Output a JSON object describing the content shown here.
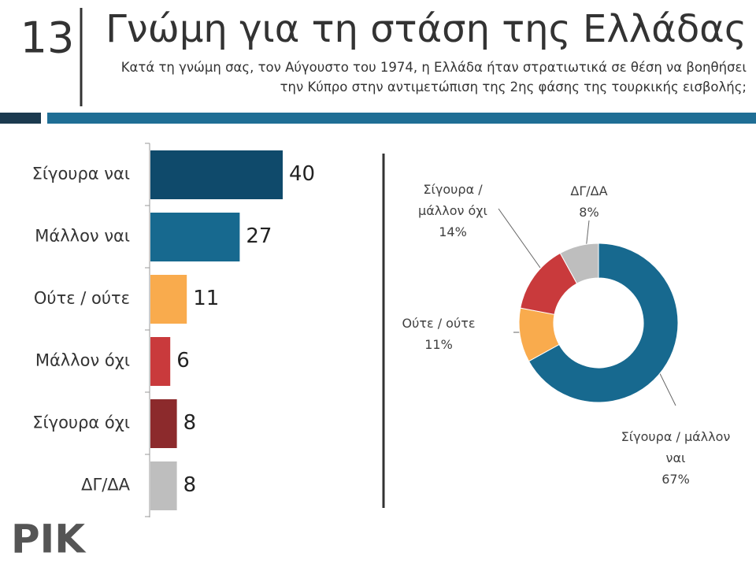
{
  "slide_number": "13",
  "title": "Γνώμη για τη στάση της Ελλάδας",
  "subtitle": "Κατά τη γνώμη σας, τον Αύγουστο του 1974, η Ελλάδα ήταν στρατιωτικά σε θέση να βοηθήσει την Κύπρο στην αντιμετώπιση της 2ης φάσης της τουρκικής εισβολής;",
  "logo": "ΡΙΚ",
  "chart_data": [
    {
      "type": "bar",
      "orientation": "horizontal",
      "categories": [
        "Σίγουρα ναι",
        "Μάλλον ναι",
        "Ούτε / ούτε",
        "Μάλλον όχι",
        "Σίγουρα όχι",
        "ΔΓ/ΔΑ"
      ],
      "values": [
        40,
        27,
        11,
        6,
        8,
        8
      ],
      "colors": [
        "#0f4a6b",
        "#17698f",
        "#f9ab4d",
        "#c93a3c",
        "#8c2a2c",
        "#bebebe"
      ]
    },
    {
      "type": "pie",
      "donut": true,
      "categories": [
        "Σίγουρα / μάλλον ναι",
        "Ούτε / ούτε",
        "Σίγουρα / μάλλον όχι",
        "ΔΓ/ΔΑ"
      ],
      "values": [
        67,
        11,
        14,
        8
      ],
      "value_labels": [
        "67%",
        "11%",
        "14%",
        "8%"
      ],
      "colors": [
        "#17698f",
        "#f9ab4d",
        "#c93a3c",
        "#bebebe"
      ]
    }
  ]
}
